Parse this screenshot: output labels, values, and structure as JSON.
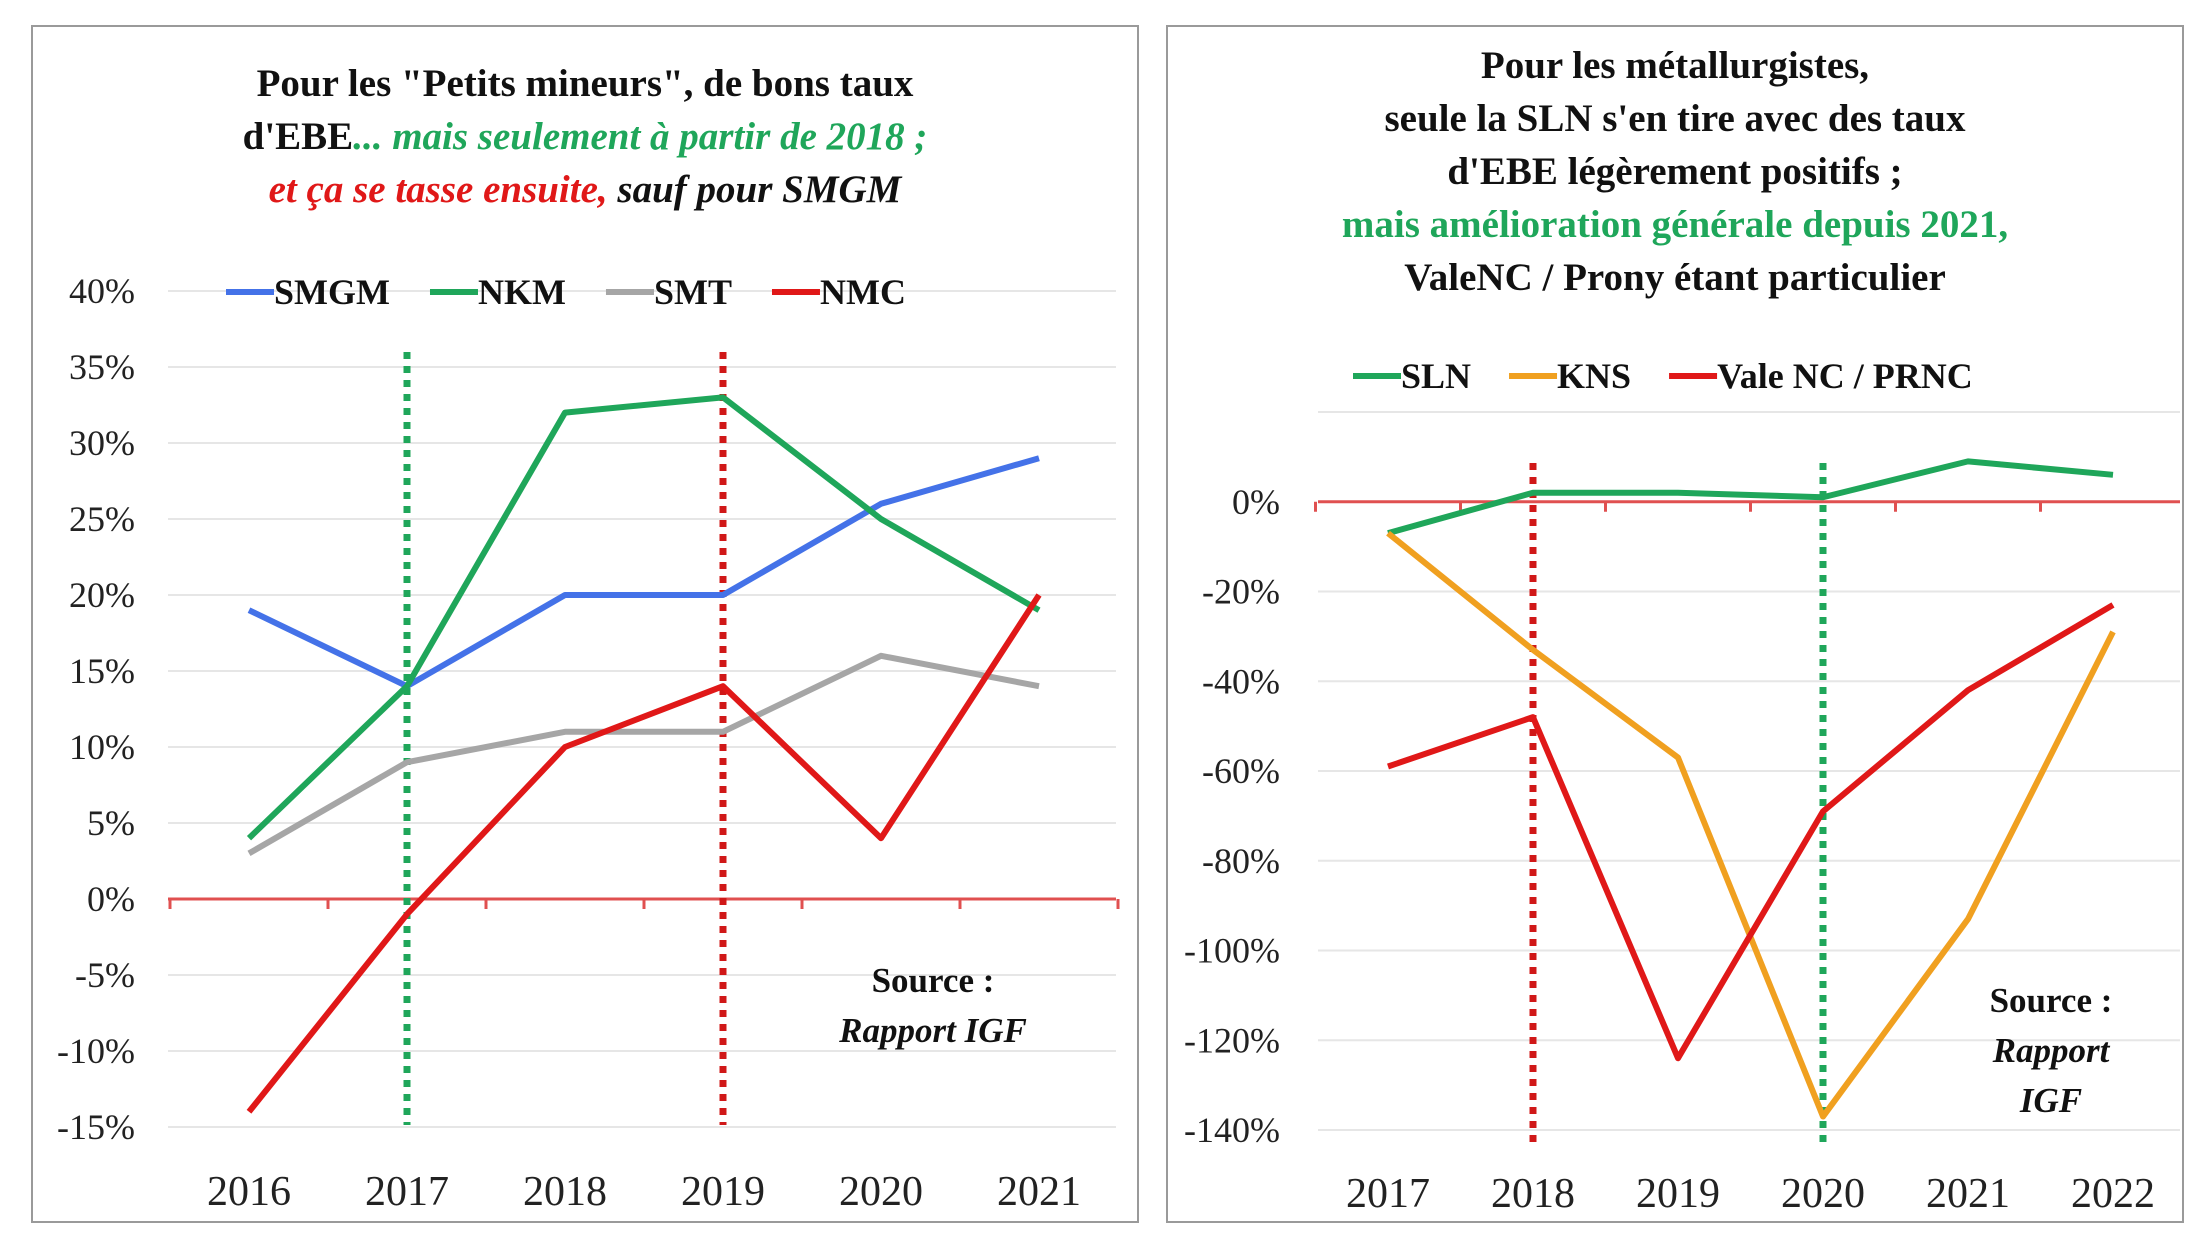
{
  "chart_data": [
    {
      "type": "line",
      "title_parts": [
        "Pour les \"Petits mineurs\", de bons taux",
        "d'EBE",
        "... mais seulement à partir de 2018 ;",
        "et ça se tasse ensuite,",
        " sauf pour SMGM"
      ],
      "categories": [
        "2016",
        "2017",
        "2018",
        "2019",
        "2020",
        "2021"
      ],
      "yticks": [
        "40%",
        "35%",
        "30%",
        "25%",
        "20%",
        "15%",
        "10%",
        "5%",
        "0%",
        "-5%",
        "-10%",
        "-15%"
      ],
      "ylim": [
        -15,
        40
      ],
      "series": [
        {
          "name": "SMGM",
          "color": "#4472e8",
          "values": [
            19,
            14,
            20,
            20,
            26,
            29
          ]
        },
        {
          "name": "NKM",
          "color": "#1fa65a",
          "values": [
            4,
            14,
            32,
            33,
            25,
            19
          ]
        },
        {
          "name": "SMT",
          "color": "#a6a6a6",
          "values": [
            3,
            9,
            11,
            11,
            16,
            14
          ]
        },
        {
          "name": "NMC",
          "color": "#e01818",
          "values": [
            -14,
            -1,
            10,
            14,
            4,
            20
          ]
        }
      ],
      "markers": [
        {
          "year": "2017",
          "color": "#1fa65a"
        },
        {
          "year": "2019",
          "color": "#d01818"
        }
      ],
      "source_label": "Source :",
      "source_value": "Rapport IGF",
      "legend": "top"
    },
    {
      "type": "line",
      "title_parts": [
        "Pour les métallurgistes,",
        "seule la SLN s'en tire avec des taux",
        "d'EBE légèrement positifs ;",
        "mais amélioration générale depuis 2021,",
        "ValeNC / Prony étant particulier"
      ],
      "categories": [
        "2017",
        "2018",
        "2019",
        "2020",
        "2021",
        "2022"
      ],
      "yticks": [
        "0%",
        "-20%",
        "-40%",
        "-60%",
        "-80%",
        "-100%",
        "-120%",
        "-140%"
      ],
      "ylim": [
        -140,
        20
      ],
      "series": [
        {
          "name": "SLN",
          "color": "#1fa65a",
          "values": [
            -7,
            2,
            2,
            1,
            9,
            6
          ]
        },
        {
          "name": "KNS",
          "color": "#f0a020",
          "values": [
            -7,
            -33,
            -57,
            -137,
            -93,
            -29
          ]
        },
        {
          "name": "Vale NC / PRNC",
          "color": "#e01818",
          "values": [
            -59,
            -48,
            -124,
            -69,
            -42,
            -23
          ]
        }
      ],
      "markers": [
        {
          "year": "2018",
          "color": "#d01818"
        },
        {
          "year": "2020",
          "color": "#1fa65a"
        }
      ],
      "source_label": "Source :",
      "source_value": [
        "Rapport",
        "IGF"
      ],
      "legend": "top"
    }
  ]
}
